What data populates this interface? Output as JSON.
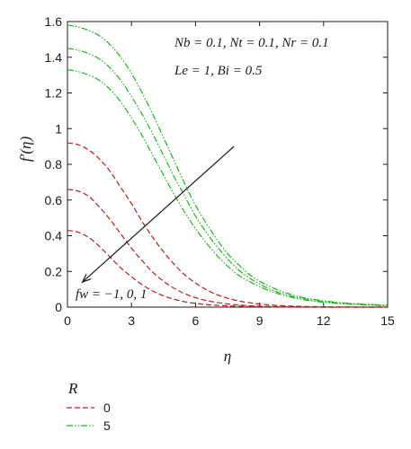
{
  "chart_data": {
    "type": "line",
    "x_label": "η",
    "y_label": "f′(η)",
    "xlim": [
      0,
      15
    ],
    "ylim": [
      0,
      1.6
    ],
    "x_ticks": [
      "0",
      "3",
      "6",
      "9",
      "12",
      "15"
    ],
    "y_ticks": [
      "0",
      "0.2",
      "0.4",
      "0.6",
      "0.8",
      "1",
      "1.2",
      "1.4",
      "1.6"
    ],
    "x_tick_values": [
      0,
      3,
      6,
      9,
      12,
      15
    ],
    "y_tick_values": [
      0,
      0.2,
      0.4,
      0.6,
      0.8,
      1.0,
      1.2,
      1.4,
      1.6
    ],
    "annotations": {
      "params_line1": "Nb = 0.1, Nt = 0.1, Nr = 0.1",
      "params_line2": "Le = 1, Bi = 0.5",
      "arrow_label": "fw = −1, 0, 1"
    },
    "legend": {
      "title": "R",
      "entries": [
        {
          "label": "0",
          "color": "#b22222",
          "dash": "dashed"
        },
        {
          "label": "5",
          "color": "#22b422",
          "dash": "dashdotdot"
        }
      ]
    },
    "x": [
      0,
      0.5,
      1,
      1.5,
      2,
      2.5,
      3,
      3.5,
      4,
      4.5,
      5,
      5.5,
      6,
      6.5,
      7,
      7.5,
      8,
      8.5,
      9,
      9.5,
      10,
      10.5,
      11,
      11.5,
      12,
      12.5,
      13,
      13.5,
      14,
      14.5,
      15
    ],
    "series": [
      {
        "group": "R=0",
        "fw": -1,
        "color": "#b22222",
        "dash": "dashed",
        "values": [
          0.43,
          0.42,
          0.39,
          0.34,
          0.28,
          0.22,
          0.17,
          0.125,
          0.09,
          0.063,
          0.044,
          0.03,
          0.021,
          0.014,
          0.01,
          0.007,
          0.005,
          0.003,
          0.002,
          0.001,
          0.001,
          0,
          0,
          0,
          0,
          0,
          0,
          0,
          0,
          0,
          0
        ]
      },
      {
        "group": "R=0",
        "fw": 0,
        "color": "#b22222",
        "dash": "dashed",
        "values": [
          0.66,
          0.65,
          0.62,
          0.56,
          0.49,
          0.41,
          0.33,
          0.26,
          0.195,
          0.145,
          0.105,
          0.075,
          0.053,
          0.037,
          0.026,
          0.018,
          0.012,
          0.008,
          0.005,
          0.004,
          0.002,
          0.002,
          0.001,
          0.001,
          0,
          0,
          0,
          0,
          0,
          0,
          0
        ]
      },
      {
        "group": "R=0",
        "fw": 1,
        "color": "#b22222",
        "dash": "dashed",
        "values": [
          0.92,
          0.91,
          0.88,
          0.83,
          0.76,
          0.67,
          0.58,
          0.48,
          0.39,
          0.31,
          0.24,
          0.18,
          0.135,
          0.098,
          0.07,
          0.05,
          0.035,
          0.025,
          0.017,
          0.012,
          0.008,
          0.006,
          0.004,
          0.003,
          0.002,
          0.001,
          0.001,
          0,
          0,
          0,
          0
        ]
      },
      {
        "group": "R=5",
        "fw": -1,
        "color": "#22b422",
        "dash": "dashdotdot",
        "values": [
          1.33,
          1.32,
          1.3,
          1.27,
          1.22,
          1.15,
          1.06,
          0.96,
          0.85,
          0.74,
          0.63,
          0.53,
          0.44,
          0.36,
          0.29,
          0.23,
          0.18,
          0.145,
          0.115,
          0.09,
          0.07,
          0.055,
          0.043,
          0.034,
          0.027,
          0.022,
          0.018,
          0.015,
          0.012,
          0.01,
          0.009
        ]
      },
      {
        "group": "R=5",
        "fw": 0,
        "color": "#22b422",
        "dash": "dashdotdot",
        "values": [
          1.45,
          1.44,
          1.42,
          1.39,
          1.34,
          1.27,
          1.18,
          1.08,
          0.97,
          0.85,
          0.73,
          0.62,
          0.51,
          0.42,
          0.34,
          0.27,
          0.21,
          0.165,
          0.13,
          0.1,
          0.078,
          0.061,
          0.048,
          0.038,
          0.031,
          0.025,
          0.021,
          0.017,
          0.014,
          0.012,
          0.01
        ]
      },
      {
        "group": "R=5",
        "fw": 1,
        "color": "#22b422",
        "dash": "dashdotdot",
        "values": [
          1.58,
          1.57,
          1.55,
          1.52,
          1.47,
          1.4,
          1.31,
          1.2,
          1.08,
          0.95,
          0.82,
          0.69,
          0.57,
          0.47,
          0.38,
          0.3,
          0.24,
          0.185,
          0.145,
          0.115,
          0.09,
          0.07,
          0.055,
          0.044,
          0.035,
          0.028,
          0.023,
          0.019,
          0.016,
          0.013,
          0.011
        ]
      }
    ],
    "arrow": {
      "from": [
        7.8,
        0.9
      ],
      "to": [
        0.7,
        0.14
      ]
    }
  }
}
